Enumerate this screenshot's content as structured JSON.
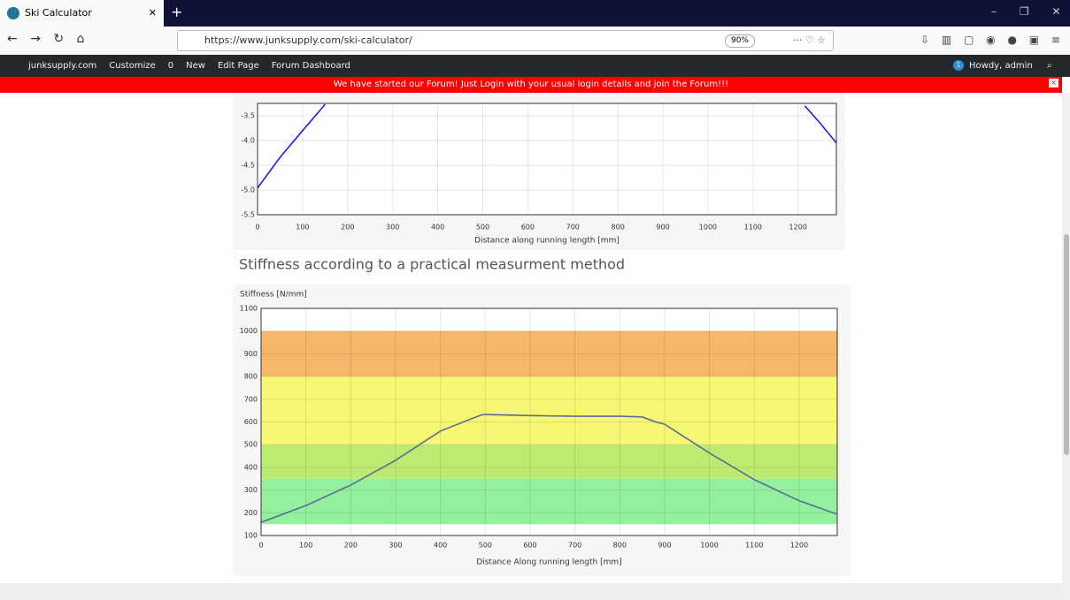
{
  "browser": {
    "tab_title": "Ski Calculator",
    "url": "https://www.junksupply.com/ski-calculator/",
    "zoom": "90%"
  },
  "admin_bar": {
    "items": [
      "junksupply.com",
      "Customize",
      "0",
      "New",
      "Edit Page",
      "Forum Dashboard"
    ],
    "notification_count": "1",
    "greeting": "Howdy, admin"
  },
  "banner": "We have started our Forum! Just Login with your usual login details and join the Forum!!!",
  "chart_data": [
    {
      "type": "line",
      "xlabel": "Distance along running length [mm]",
      "grid": true,
      "xlim": [
        0,
        1285
      ],
      "xticks": [
        0,
        100,
        200,
        300,
        400,
        500,
        600,
        700,
        800,
        900,
        1000,
        1100,
        1200
      ],
      "ylim": [
        -5.5,
        -3.25
      ],
      "yticks": [
        -3.5,
        {
          "value": -4,
          "label": "-4.0"
        },
        -4.5,
        {
          "value": -5,
          "label": "-5.0"
        },
        -5.5
      ],
      "series": [
        {
          "color": "#1f1fe6",
          "x": [
            0,
            50,
            100,
            150
          ],
          "values": [
            -4.96,
            -4.34,
            -3.8,
            -3.27
          ]
        },
        {
          "color": "#1f1fe6",
          "x": [
            1215,
            1250,
            1285
          ],
          "values": [
            -3.3,
            -3.66,
            -4.05
          ]
        }
      ]
    },
    {
      "type": "line",
      "title": "Stiffness according to a practical measurment method",
      "ylabel": "Stiffness [N/mm]",
      "xlabel": "Distance Along running length [mm]",
      "grid": true,
      "xlim": [
        0,
        1285
      ],
      "xticks": [
        0,
        100,
        200,
        300,
        400,
        500,
        600,
        700,
        800,
        900,
        1000,
        1100,
        1200
      ],
      "ylim": [
        100,
        1100
      ],
      "yticks": [
        100,
        200,
        300,
        400,
        500,
        600,
        700,
        800,
        900,
        1000,
        1100
      ],
      "bands": [
        {
          "from": 150,
          "to": 350,
          "color": "#93f09c"
        },
        {
          "from": 350,
          "to": 500,
          "color": "#bdeb72"
        },
        {
          "from": 500,
          "to": 800,
          "color": "#f6f774"
        },
        {
          "from": 800,
          "to": 1000,
          "color": "#f8b66b"
        }
      ],
      "series": [
        {
          "color": "#5b6c93",
          "x": [
            0,
            100,
            200,
            300,
            400,
            490,
            500,
            600,
            700,
            800,
            850,
            880,
            900,
            1000,
            1100,
            1200,
            1283
          ],
          "values": [
            158,
            232,
            322,
            431,
            560,
            630,
            633,
            628,
            625,
            625,
            622,
            600,
            590,
            463,
            346,
            253,
            195
          ]
        }
      ]
    }
  ]
}
